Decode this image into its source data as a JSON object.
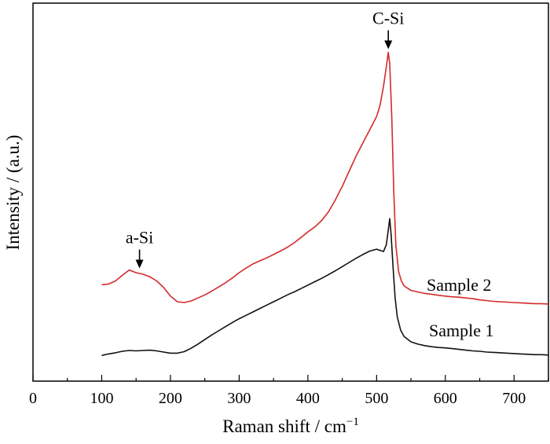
{
  "chart_data": {
    "type": "line",
    "xlabel": "Raman shift / cm",
    "xlabel_sup": "−1",
    "ylabel": "Intensity / (a.u.)",
    "xlim": [
      0,
      750
    ],
    "ylim": [
      0,
      100
    ],
    "x_ticks": [
      0,
      100,
      200,
      300,
      400,
      500,
      600,
      700
    ],
    "x_ticks_labels": [
      "0",
      "100",
      "200",
      "300",
      "400",
      "500",
      "600",
      "700"
    ],
    "grid": false,
    "y_ticks_shown": false,
    "series": [
      {
        "name": "Sample 2",
        "color": "#d42a2a",
        "points": [
          [
            100,
            25.5
          ],
          [
            110,
            25.7
          ],
          [
            120,
            26.5
          ],
          [
            130,
            28.0
          ],
          [
            140,
            29.4
          ],
          [
            150,
            28.7
          ],
          [
            160,
            28.3
          ],
          [
            170,
            27.6
          ],
          [
            180,
            26.5
          ],
          [
            190,
            24.8
          ],
          [
            200,
            22.5
          ],
          [
            210,
            21.0
          ],
          [
            220,
            20.8
          ],
          [
            230,
            21.2
          ],
          [
            240,
            22.0
          ],
          [
            250,
            22.8
          ],
          [
            260,
            23.8
          ],
          [
            270,
            24.9
          ],
          [
            280,
            26.0
          ],
          [
            290,
            27.3
          ],
          [
            300,
            28.7
          ],
          [
            310,
            29.9
          ],
          [
            320,
            31.0
          ],
          [
            330,
            31.8
          ],
          [
            340,
            32.6
          ],
          [
            350,
            33.5
          ],
          [
            360,
            34.4
          ],
          [
            370,
            35.4
          ],
          [
            380,
            36.6
          ],
          [
            390,
            38.0
          ],
          [
            400,
            39.5
          ],
          [
            410,
            40.8
          ],
          [
            420,
            42.5
          ],
          [
            430,
            44.8
          ],
          [
            440,
            48.0
          ],
          [
            450,
            51.5
          ],
          [
            460,
            55.5
          ],
          [
            470,
            59.5
          ],
          [
            480,
            63.0
          ],
          [
            490,
            66.5
          ],
          [
            500,
            70.0
          ],
          [
            505,
            73.0
          ],
          [
            510,
            78.0
          ],
          [
            514,
            83.0
          ],
          [
            517,
            87.0
          ],
          [
            519,
            84.0
          ],
          [
            522,
            70.0
          ],
          [
            525,
            50.0
          ],
          [
            528,
            36.0
          ],
          [
            532,
            29.0
          ],
          [
            536,
            26.5
          ],
          [
            540,
            25.2
          ],
          [
            550,
            24.0
          ],
          [
            560,
            23.6
          ],
          [
            570,
            23.2
          ],
          [
            580,
            23.0
          ],
          [
            590,
            22.7
          ],
          [
            600,
            22.5
          ],
          [
            610,
            22.3
          ],
          [
            620,
            22.2
          ],
          [
            630,
            22.0
          ],
          [
            640,
            21.8
          ],
          [
            650,
            21.5
          ],
          [
            660,
            21.3
          ],
          [
            670,
            21.1
          ],
          [
            680,
            21.0
          ],
          [
            690,
            20.9
          ],
          [
            700,
            20.8
          ],
          [
            710,
            20.7
          ],
          [
            720,
            20.6
          ],
          [
            730,
            20.5
          ],
          [
            740,
            20.5
          ],
          [
            750,
            20.4
          ]
        ]
      },
      {
        "name": "Sample 1",
        "color": "#111111",
        "points": [
          [
            100,
            6.8
          ],
          [
            110,
            7.2
          ],
          [
            120,
            7.5
          ],
          [
            130,
            7.9
          ],
          [
            140,
            8.1
          ],
          [
            150,
            8.0
          ],
          [
            160,
            8.1
          ],
          [
            170,
            8.2
          ],
          [
            180,
            8.0
          ],
          [
            190,
            7.7
          ],
          [
            200,
            7.4
          ],
          [
            210,
            7.4
          ],
          [
            220,
            7.8
          ],
          [
            230,
            8.7
          ],
          [
            240,
            9.8
          ],
          [
            250,
            11.0
          ],
          [
            260,
            12.2
          ],
          [
            270,
            13.3
          ],
          [
            280,
            14.4
          ],
          [
            290,
            15.5
          ],
          [
            300,
            16.5
          ],
          [
            310,
            17.4
          ],
          [
            320,
            18.3
          ],
          [
            330,
            19.2
          ],
          [
            340,
            20.1
          ],
          [
            350,
            21.0
          ],
          [
            360,
            21.9
          ],
          [
            370,
            22.8
          ],
          [
            380,
            23.6
          ],
          [
            390,
            24.5
          ],
          [
            400,
            25.4
          ],
          [
            410,
            26.3
          ],
          [
            420,
            27.2
          ],
          [
            430,
            28.2
          ],
          [
            440,
            29.2
          ],
          [
            450,
            30.3
          ],
          [
            460,
            31.4
          ],
          [
            470,
            32.5
          ],
          [
            480,
            33.5
          ],
          [
            490,
            34.4
          ],
          [
            500,
            34.9
          ],
          [
            505,
            34.6
          ],
          [
            510,
            34.3
          ],
          [
            514,
            36.0
          ],
          [
            517,
            40.0
          ],
          [
            519,
            43.0
          ],
          [
            521,
            39.0
          ],
          [
            524,
            30.0
          ],
          [
            527,
            22.0
          ],
          [
            530,
            17.0
          ],
          [
            535,
            13.5
          ],
          [
            540,
            11.8
          ],
          [
            550,
            10.4
          ],
          [
            560,
            9.8
          ],
          [
            570,
            9.4
          ],
          [
            580,
            9.1
          ],
          [
            590,
            8.9
          ],
          [
            600,
            8.8
          ],
          [
            610,
            8.6
          ],
          [
            620,
            8.4
          ],
          [
            630,
            8.2
          ],
          [
            640,
            8.0
          ],
          [
            650,
            7.9
          ],
          [
            660,
            7.7
          ],
          [
            670,
            7.6
          ],
          [
            680,
            7.5
          ],
          [
            690,
            7.4
          ],
          [
            700,
            7.3
          ],
          [
            710,
            7.2
          ],
          [
            720,
            7.1
          ],
          [
            730,
            7.0
          ],
          [
            740,
            7.0
          ],
          [
            750,
            6.9
          ]
        ]
      }
    ],
    "annotations": [
      {
        "text": "C-Si",
        "x": 517,
        "y": 87.0,
        "arrow": true
      },
      {
        "text": "a-Si",
        "x": 155,
        "y": 29.0,
        "arrow": true
      }
    ]
  }
}
